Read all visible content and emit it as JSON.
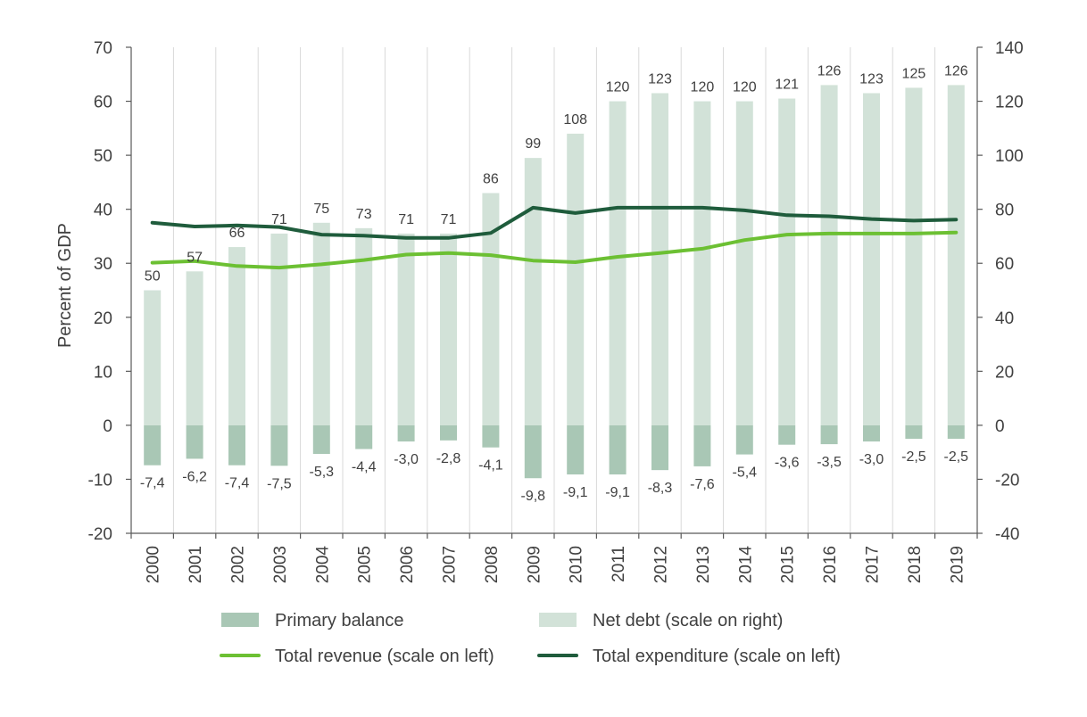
{
  "chart_data": {
    "type": "bar",
    "ylabel": "Percent of GDP",
    "left_axis": {
      "min": -20,
      "max": 70,
      "step": 10,
      "ticks": [
        "-20",
        "-10",
        "0",
        "10",
        "20",
        "30",
        "40",
        "50",
        "60",
        "70"
      ]
    },
    "right_axis": {
      "min": -40,
      "max": 140,
      "step": 20,
      "ticks": [
        "-40",
        "-20",
        "0",
        "20",
        "40",
        "60",
        "80",
        "100",
        "120",
        "140"
      ]
    },
    "categories": [
      "2000",
      "2001",
      "2002",
      "2003",
      "2004",
      "2005",
      "2006",
      "2007",
      "2008",
      "2009",
      "2010",
      "2011",
      "2012",
      "2013",
      "2014",
      "2015",
      "2016",
      "2017",
      "2018",
      "2019"
    ],
    "series": [
      {
        "name": "Primary balance",
        "kind": "bar",
        "axis": "left",
        "color": "#a9c7b5",
        "values": [
          -7.4,
          -6.2,
          -7.4,
          -7.5,
          -5.3,
          -4.4,
          -3.0,
          -2.8,
          -4.1,
          -9.8,
          -9.1,
          -9.1,
          -8.3,
          -7.6,
          -5.4,
          -3.6,
          -3.5,
          -3.0,
          -2.5,
          -2.5
        ],
        "labels": [
          "-7,4",
          "-6,2",
          "-7,4",
          "-7,5",
          "-5,3",
          "-4,4",
          "-3,0",
          "-2,8",
          "-4,1",
          "-9,8",
          "-9,1",
          "-9,1",
          "-8,3",
          "-7,6",
          "-5,4",
          "-3,6",
          "-3,5",
          "-3,0",
          "-2,5",
          "-2,5"
        ]
      },
      {
        "name": "Net debt (scale on right)",
        "kind": "bar",
        "axis": "right",
        "color": "#d2e2d8",
        "values": [
          50,
          57,
          66,
          71,
          75,
          73,
          71,
          71,
          86,
          99,
          108,
          120,
          123,
          120,
          120,
          121,
          126,
          123,
          125,
          126
        ],
        "labels": [
          "50",
          "57",
          "66",
          "71",
          "75",
          "73",
          "71",
          "71",
          "86",
          "99",
          "108",
          "120",
          "123",
          "120",
          "120",
          "121",
          "126",
          "123",
          "125",
          "126"
        ]
      },
      {
        "name": "Total revenue (scale on left)",
        "kind": "line",
        "axis": "left",
        "color": "#6cc033",
        "values": [
          30.1,
          30.4,
          29.5,
          29.2,
          29.8,
          30.6,
          31.6,
          31.9,
          31.5,
          30.5,
          30.2,
          31.2,
          31.9,
          32.7,
          34.3,
          35.3,
          35.5,
          35.5,
          35.5,
          35.7
        ]
      },
      {
        "name": "Total expenditure (scale on left)",
        "kind": "line",
        "axis": "left",
        "color": "#1f5c3c",
        "values": [
          37.5,
          36.8,
          37.0,
          36.7,
          35.3,
          35.1,
          34.7,
          34.7,
          35.6,
          40.3,
          39.3,
          40.3,
          40.3,
          40.3,
          39.8,
          38.9,
          38.7,
          38.2,
          37.9,
          38.1
        ]
      }
    ],
    "legend": {
      "placement": "bottom",
      "items": [
        "Primary balance",
        "Net debt (scale on right)",
        "Total revenue (scale on left)",
        "Total expenditure (scale on left)"
      ]
    },
    "grid": "vertical"
  }
}
